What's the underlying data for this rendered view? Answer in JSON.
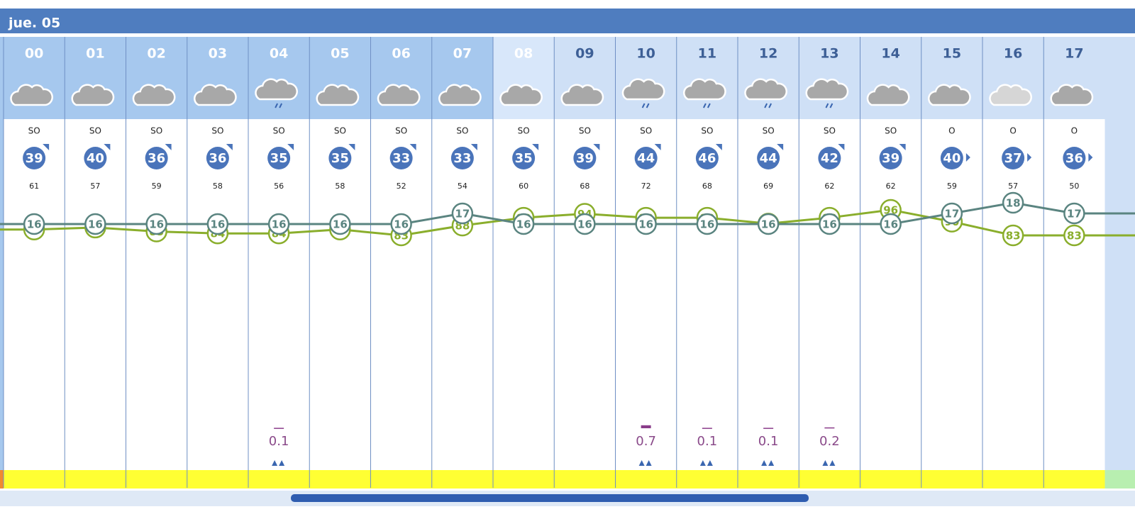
{
  "header": {
    "day": "jue. 05"
  },
  "hours": [
    "00",
    "01",
    "02",
    "03",
    "04",
    "05",
    "06",
    "07",
    "08",
    "09",
    "10",
    "11",
    "12",
    "13",
    "14",
    "15",
    "16",
    "17"
  ],
  "wind_direction": [
    "SO",
    "SO",
    "SO",
    "SO",
    "SO",
    "SO",
    "SO",
    "SO",
    "SO",
    "SO",
    "SO",
    "SO",
    "SO",
    "SO",
    "SO",
    "O",
    "O",
    "O"
  ],
  "wind_speed": [
    39,
    40,
    36,
    36,
    35,
    35,
    33,
    33,
    35,
    39,
    44,
    46,
    44,
    42,
    39,
    40,
    37,
    36
  ],
  "wind_gust": [
    61,
    57,
    59,
    58,
    56,
    58,
    52,
    54,
    60,
    68,
    72,
    68,
    69,
    62,
    62,
    59,
    57,
    50
  ],
  "temperature": [
    16,
    16,
    16,
    16,
    16,
    16,
    16,
    17,
    16,
    16,
    16,
    16,
    16,
    16,
    16,
    17,
    18,
    17
  ],
  "humidity": [
    86,
    87,
    85,
    84,
    84,
    86,
    83,
    88,
    92,
    94,
    92,
    92,
    89,
    92,
    96,
    90,
    83,
    83
  ],
  "precipitation": [
    null,
    null,
    null,
    null,
    0.1,
    null,
    null,
    null,
    null,
    null,
    0.7,
    0.1,
    0.1,
    0.2,
    null,
    null,
    null,
    null
  ]
}
